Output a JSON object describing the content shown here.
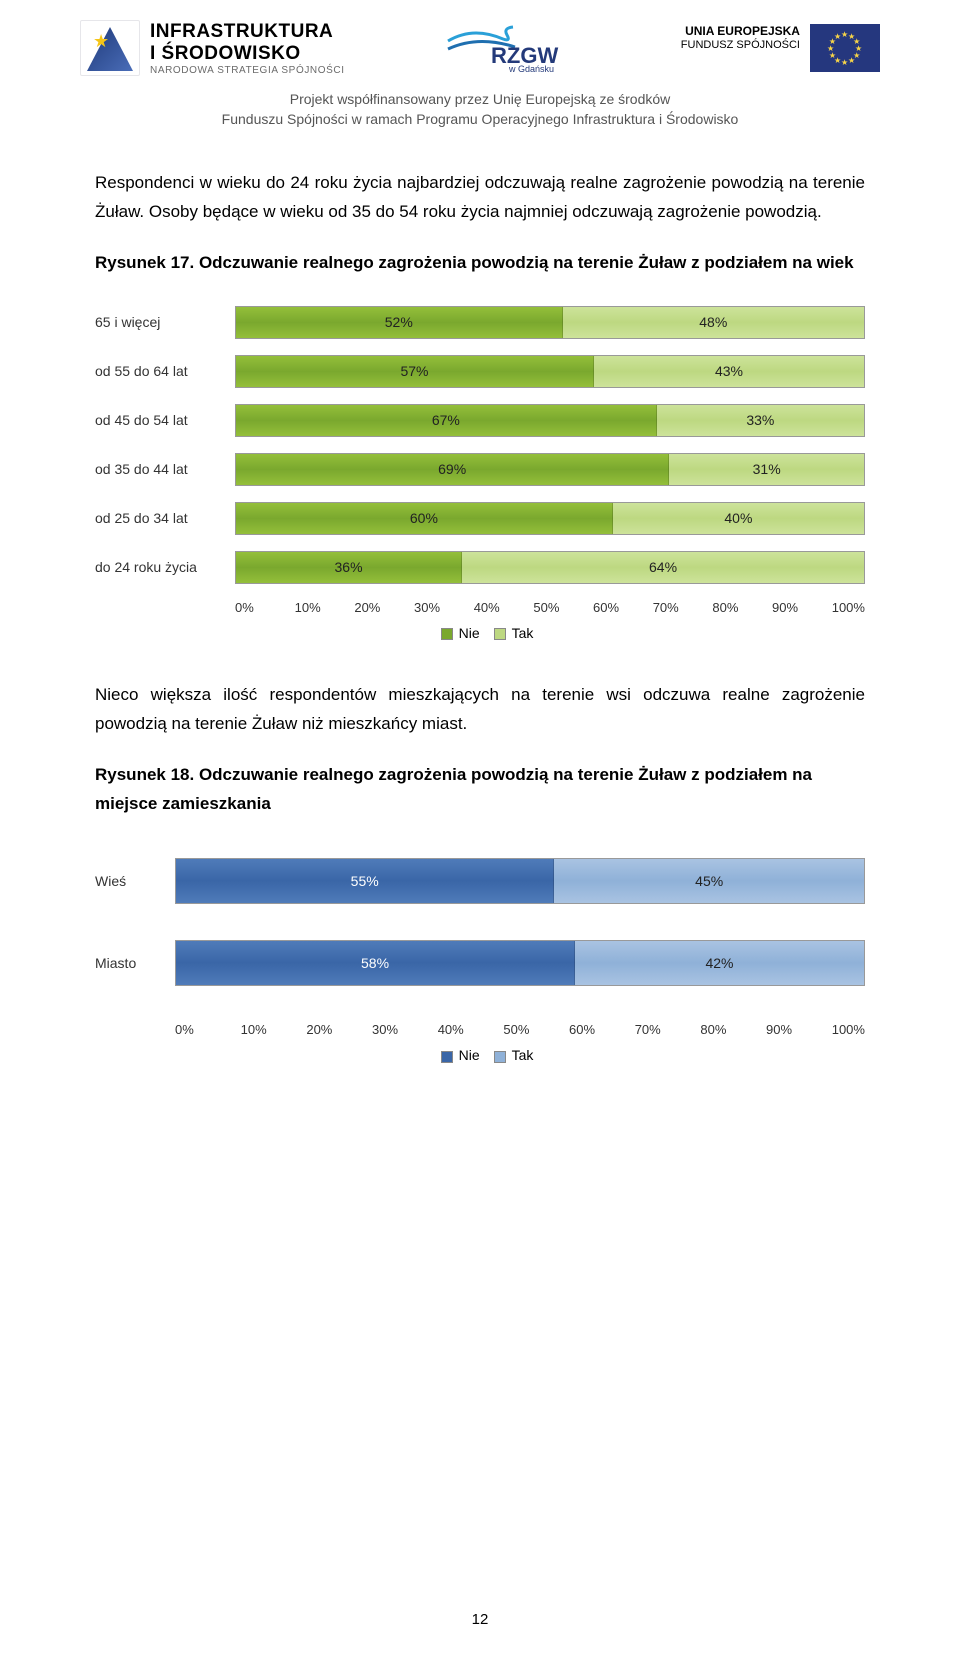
{
  "header": {
    "is_line1": "INFRASTRUKTURA",
    "is_line2": "I ŚRODOWISKO",
    "is_line3": "NARODOWA STRATEGIA SPÓJNOŚCI",
    "rzgw_main": "RZGW",
    "rzgw_sub": "w Gdańsku",
    "eu_line1": "UNIA EUROPEJSKA",
    "eu_line2": "FUNDUSZ SPÓJNOŚCI"
  },
  "subheader": {
    "line1": "Projekt współfinansowany przez Unię Europejską ze środków",
    "line2": "Funduszu Spójności w ramach Programu Operacyjnego Infrastruktura i Środowisko"
  },
  "para1": "Respondenci w wieku do 24 roku życia najbardziej odczuwają realne zagrożenie powodzią na terenie Żuław. Osoby będące w wieku od 35 do 54 roku życia najmniej odczuwają zagrożenie powodzią.",
  "fig17_title_bold": "Rysunek 17. Odczuwanie realnego zagrożenia powodzią na terenie Żuław z podziałem na wiek",
  "chart1": {
    "type": "stacked_hbar_100",
    "categories": [
      "65 i więcej",
      "od 55 do 64 lat",
      "od 45 do 54 lat",
      "od 35 do 44 lat",
      "od 25 do 34 lat",
      "do 24 roku życia"
    ],
    "series": [
      {
        "name": "Nie",
        "color": "#7aa82e",
        "values": [
          52,
          57,
          67,
          69,
          60,
          36
        ]
      },
      {
        "name": "Tak",
        "color": "#bdd881",
        "values": [
          48,
          43,
          33,
          31,
          40,
          64
        ]
      }
    ],
    "axis_ticks": [
      "0%",
      "10%",
      "20%",
      "30%",
      "40%",
      "50%",
      "60%",
      "70%",
      "80%",
      "90%",
      "100%"
    ],
    "legend": [
      "Nie",
      "Tak"
    ]
  },
  "para2": "Nieco większa ilość respondentów mieszkających na terenie wsi odczuwa realne zagrożenie powodzią na terenie Żuław niż mieszkańcy miast.",
  "fig18_title_bold": "Rysunek 18. Odczuwanie realnego zagrożenia powodzią na terenie Żuław z podziałem na miejsce zamieszkania",
  "chart2": {
    "type": "stacked_hbar_100",
    "categories": [
      "Wieś",
      "Miasto"
    ],
    "series": [
      {
        "name": "Nie",
        "color": "#3a66a7",
        "values": [
          55,
          58
        ]
      },
      {
        "name": "Tak",
        "color": "#8fb1d8",
        "values": [
          45,
          42
        ]
      }
    ],
    "axis_ticks": [
      "0%",
      "10%",
      "20%",
      "30%",
      "40%",
      "50%",
      "60%",
      "70%",
      "80%",
      "90%",
      "100%"
    ],
    "legend": [
      "Nie",
      "Tak"
    ]
  },
  "page_number": "12"
}
